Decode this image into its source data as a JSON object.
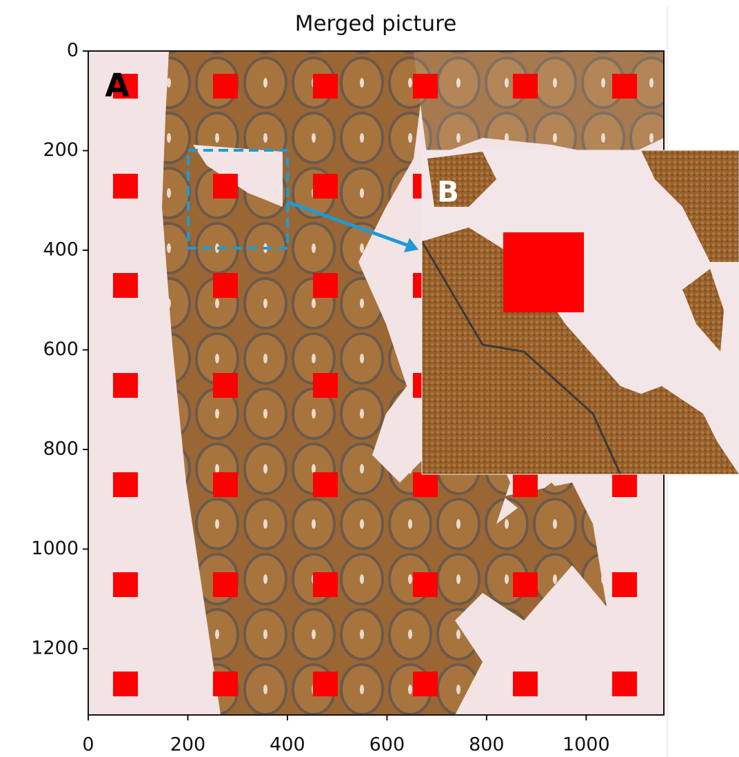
{
  "chart_data": {
    "type": "image",
    "title": "Merged picture",
    "xlim": [
      0,
      1156
    ],
    "ylim": [
      1333,
      0
    ],
    "xticks": [
      0,
      200,
      400,
      600,
      800,
      1000
    ],
    "yticks": [
      0,
      200,
      400,
      600,
      800,
      1000,
      1200
    ],
    "panel_labels": [
      "A",
      "B"
    ]
  }
}
